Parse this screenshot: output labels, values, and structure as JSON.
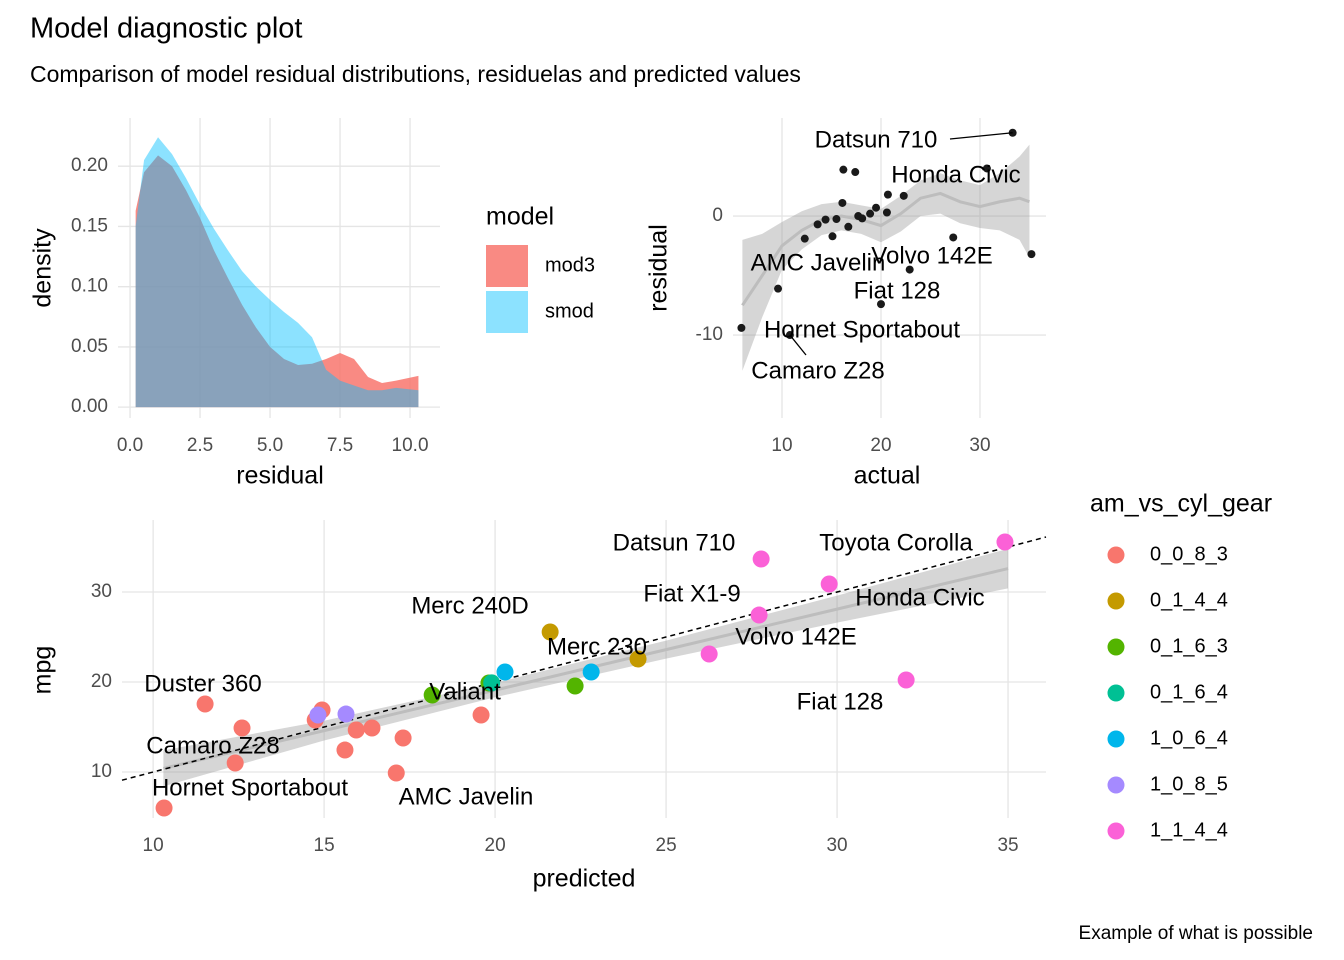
{
  "title": "Model diagnostic plot",
  "subtitle": "Comparison of model residual distributions, residuelas and predicted values",
  "caption": "Example of what is possible",
  "chart_data": [
    {
      "type": "density",
      "x_label": "residual",
      "y_label": "density",
      "legend_title": "model",
      "legend": "right",
      "grid": true,
      "x": [
        0.2,
        0.5,
        1,
        1.5,
        2,
        2.5,
        3,
        3.5,
        4,
        4.5,
        5,
        5.5,
        6,
        6.5,
        7,
        7.5,
        8,
        8.5,
        9,
        9.5,
        10.3
      ],
      "series": [
        {
          "name": "mod3",
          "color": "#F8766D",
          "values": [
            0.163,
            0.195,
            0.209,
            0.2,
            0.18,
            0.157,
            0.13,
            0.107,
            0.085,
            0.066,
            0.05,
            0.04,
            0.035,
            0.036,
            0.04,
            0.045,
            0.04,
            0.025,
            0.02,
            0.022,
            0.026
          ]
        },
        {
          "name": "smod",
          "color": "#00BFFF",
          "values": [
            0.15,
            0.205,
            0.224,
            0.21,
            0.19,
            0.168,
            0.148,
            0.13,
            0.113,
            0.1,
            0.089,
            0.079,
            0.07,
            0.058,
            0.031,
            0.022,
            0.018,
            0.014,
            0.014,
            0.016,
            0.014
          ]
        }
      ],
      "xlim": [
        -0.43,
        11.07
      ],
      "ylim": [
        -0.009,
        0.24
      ],
      "xticks": [
        {
          "value": 0,
          "label": "0.0"
        },
        2.5,
        {
          "value": 5,
          "label": "5.0"
        },
        7.5,
        {
          "value": 10,
          "label": "10.0"
        }
      ],
      "yticks": [
        {
          "value": 0,
          "label": "0.00"
        },
        0.05,
        {
          "value": 0.1,
          "label": "0.10"
        },
        0.15,
        {
          "value": 0.2,
          "label": "0.20"
        }
      ]
    },
    {
      "type": "scatter",
      "x_label": "actual",
      "y_label": "residual",
      "grid": true,
      "color": "#1a1a1a",
      "x": [
        33.3,
        16.2,
        17.4,
        30.7,
        20.7,
        22.3,
        16.1,
        19.5,
        13.6,
        14.4,
        15.5,
        16.7,
        18.1,
        18.9,
        20.6,
        12.3,
        15.1,
        27.3,
        35.2,
        22.9,
        20.0,
        9.6,
        5.9,
        10.8,
        17.7
      ],
      "values": [
        7.0,
        3.9,
        3.7,
        4.0,
        1.8,
        1.7,
        1.1,
        0.7,
        -0.7,
        -0.3,
        -0.25,
        -0.9,
        -0.2,
        0.2,
        0.3,
        -1.9,
        -1.7,
        -1.8,
        -3.2,
        -4.5,
        -7.4,
        -6.1,
        -9.4,
        -10.0,
        0
      ],
      "labels": [
        "Datsun 710",
        null,
        null,
        "Honda Civic",
        null,
        null,
        null,
        null,
        null,
        null,
        null,
        null,
        null,
        null,
        null,
        null,
        null,
        null,
        null,
        "Volvo 142E",
        "Fiat 128",
        "AMC Javelin",
        "Hornet Sportabout",
        "Camaro Z28",
        null
      ],
      "smooth": {
        "x": [
          6,
          8,
          10,
          12,
          14,
          16,
          18,
          20,
          22,
          24,
          26,
          28,
          30,
          32,
          34,
          35
        ],
        "y": [
          -7.5,
          -5,
          -2.5,
          -1.2,
          -0.3,
          0,
          -0.3,
          -0.8,
          0.2,
          1.5,
          1.9,
          1.2,
          0.8,
          1.2,
          1.5,
          1.2
        ],
        "lower": [
          -13,
          -8.5,
          -4.5,
          -2.8,
          -1.6,
          -1.2,
          -1.5,
          -2.2,
          -1.3,
          0,
          0.2,
          -0.6,
          -1,
          -1.2,
          -2,
          -3.5
        ],
        "upper": [
          -2,
          -1.5,
          -0.5,
          0.4,
          1,
          1.2,
          0.9,
          0.6,
          1.7,
          3,
          3.6,
          3,
          2.6,
          3.6,
          5,
          6
        ]
      },
      "xlim": [
        5.05,
        36.67
      ],
      "ylim": [
        -16.97,
        8.24
      ],
      "xticks": [
        10,
        20,
        30
      ],
      "yticks": [
        -10,
        0
      ]
    },
    {
      "type": "scatter",
      "x_label": "predicted",
      "y_label": "mpg",
      "legend_title": "am_vs_cyl_gear",
      "legend": "right",
      "grid": true,
      "identity_line": true,
      "series": [
        {
          "name": "0_0_8_3",
          "color": "#F8766D",
          "x": [
            11.52,
            12.6,
            12.4,
            10.32,
            14.94,
            14.74,
            15.61,
            15.94,
            16.4,
            17.31,
            17.11,
            19.59
          ],
          "values": [
            17.56,
            14.89,
            11.0,
            6.0,
            16.89,
            15.78,
            12.44,
            14.67,
            14.89,
            13.78,
            9.89,
            16.33
          ],
          "labels": [
            "Duster 360",
            null,
            "Camaro Z28",
            "Hornet Sportabout",
            null,
            null,
            null,
            null,
            null,
            null,
            "AMC Javelin",
            null
          ]
        },
        {
          "name": "0_1_4_4",
          "color": "#C49A00",
          "x": [
            21.61,
            24.18
          ],
          "values": [
            25.56,
            22.56
          ],
          "labels": [
            "Merc 240D",
            "Merc 230"
          ]
        },
        {
          "name": "0_1_6_3",
          "color": "#53B400",
          "x": [
            18.16,
            19.82,
            22.34
          ],
          "values": [
            18.56,
            19.89,
            19.56
          ],
          "labels": [
            "Valiant",
            null,
            null
          ]
        },
        {
          "name": "0_1_6_4",
          "color": "#00C094",
          "x": [
            19.9
          ],
          "values": [
            19.9
          ],
          "labels": [
            null
          ]
        },
        {
          "name": "1_0_6_4",
          "color": "#00B6EB",
          "x": [
            20.29,
            22.81
          ],
          "values": [
            21.11,
            21.11
          ],
          "labels": [
            null,
            null
          ]
        },
        {
          "name": "1_0_8_5",
          "color": "#A58AFF",
          "x": [
            14.82,
            15.64
          ],
          "values": [
            16.33,
            16.44
          ],
          "labels": [
            null,
            null
          ]
        },
        {
          "name": "1_1_4_4",
          "color": "#FB61D7",
          "x": [
            27.78,
            34.91,
            29.77,
            27.72,
            26.26,
            32.02
          ],
          "values": [
            33.67,
            35.56,
            30.89,
            27.44,
            23.11,
            20.22
          ],
          "labels": [
            "Datsun 710",
            "Toyota Corolla",
            "Honda Civic",
            "Fiat X1-9",
            "Volvo 142E",
            "Fiat 128"
          ]
        }
      ],
      "smooth": {
        "x": [
          10.3,
          15,
          20,
          25,
          30,
          35
        ],
        "y": [
          10.4,
          14.6,
          19.1,
          23.6,
          28.1,
          32.6
        ],
        "lower": [
          8.4,
          13.5,
          18.3,
          22.6,
          26.6,
          30.4
        ],
        "upper": [
          12.4,
          15.7,
          19.9,
          24.6,
          29.6,
          34.8
        ]
      },
      "xlim": [
        9.09,
        36.11
      ],
      "ylim": [
        4.89,
        38
      ],
      "xticks": [
        10,
        15,
        20,
        25,
        30,
        35
      ],
      "yticks": [
        10,
        20,
        30
      ]
    }
  ]
}
